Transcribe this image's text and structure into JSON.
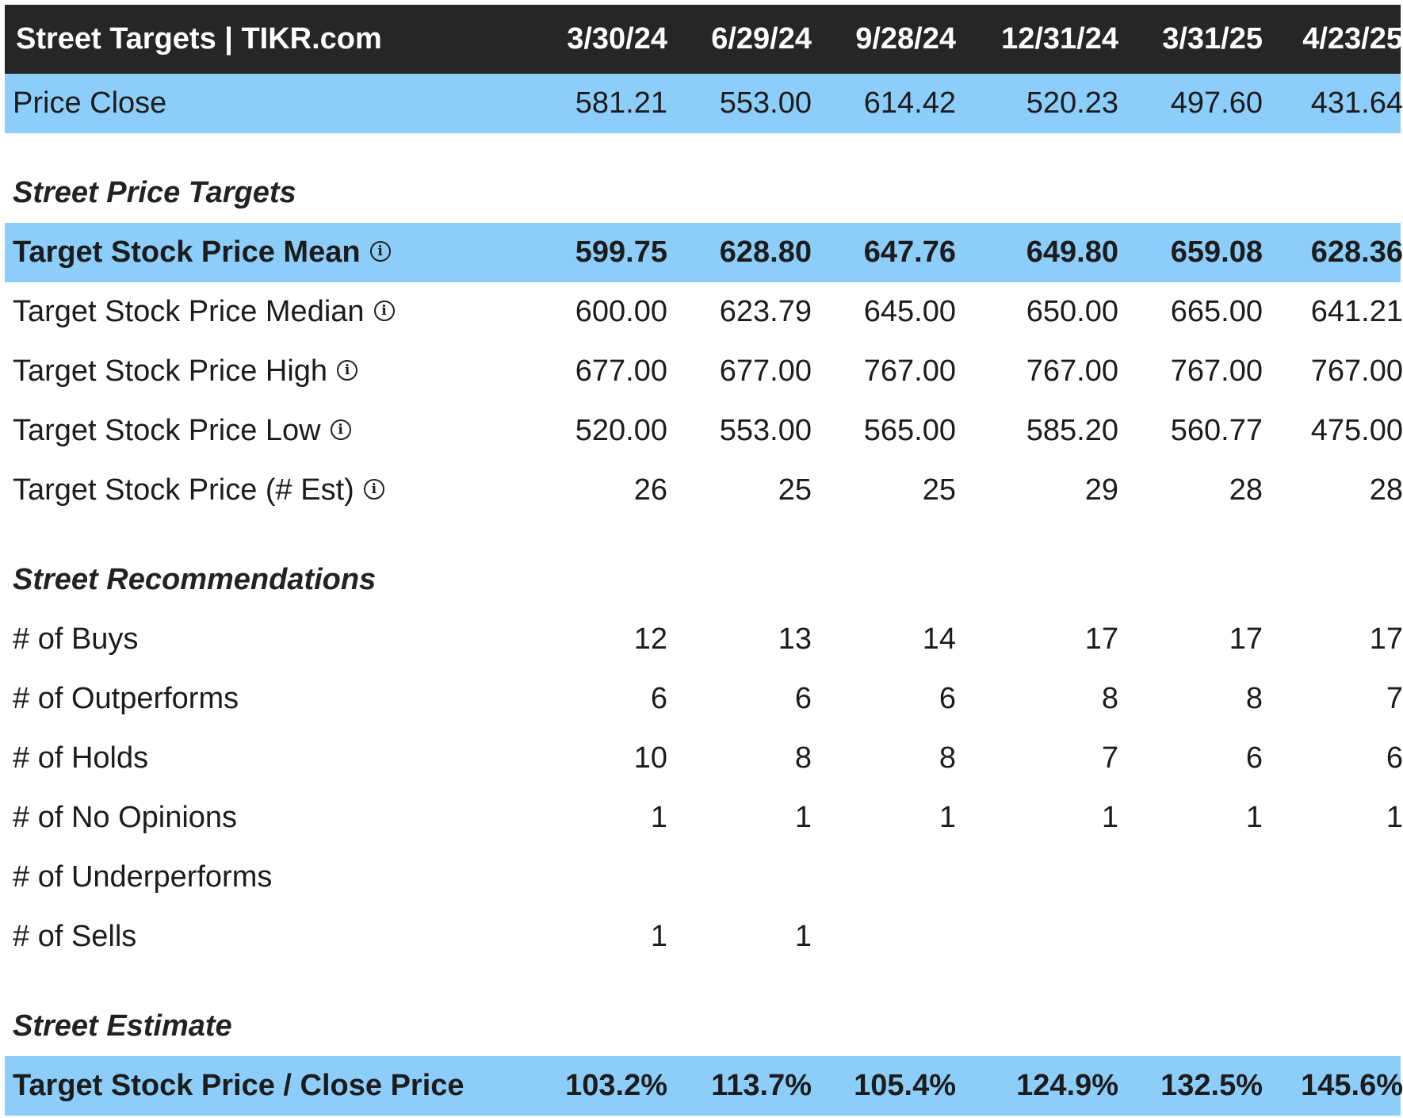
{
  "header": {
    "title": "Street Targets | TIKR.com",
    "dates": [
      "3/30/24",
      "6/29/24",
      "9/28/24",
      "12/31/24",
      "3/31/25",
      "4/23/25"
    ]
  },
  "price_close": {
    "label": "Price Close",
    "values": [
      "581.21",
      "553.00",
      "614.42",
      "520.23",
      "497.60",
      "431.64"
    ]
  },
  "street_price_targets": {
    "title": "Street Price Targets",
    "rows": [
      {
        "label": "Target Stock Price Mean",
        "values": [
          "599.75",
          "628.80",
          "647.76",
          "649.80",
          "659.08",
          "628.36"
        ]
      },
      {
        "label": "Target Stock Price Median",
        "values": [
          "600.00",
          "623.79",
          "645.00",
          "650.00",
          "665.00",
          "641.21"
        ]
      },
      {
        "label": "Target Stock Price High",
        "values": [
          "677.00",
          "677.00",
          "767.00",
          "767.00",
          "767.00",
          "767.00"
        ]
      },
      {
        "label": "Target Stock Price Low",
        "values": [
          "520.00",
          "553.00",
          "565.00",
          "585.20",
          "560.77",
          "475.00"
        ]
      },
      {
        "label": "Target Stock Price (# Est)",
        "values": [
          "26",
          "25",
          "25",
          "29",
          "28",
          "28"
        ]
      }
    ]
  },
  "street_recommendations": {
    "title": "Street Recommendations",
    "rows": [
      {
        "label": "# of Buys",
        "values": [
          "12",
          "13",
          "14",
          "17",
          "17",
          "17"
        ]
      },
      {
        "label": "# of Outperforms",
        "values": [
          "6",
          "6",
          "6",
          "8",
          "8",
          "7"
        ]
      },
      {
        "label": "# of Holds",
        "values": [
          "10",
          "8",
          "8",
          "7",
          "6",
          "6"
        ]
      },
      {
        "label": "# of No Opinions",
        "values": [
          "1",
          "1",
          "1",
          "1",
          "1",
          "1"
        ]
      },
      {
        "label": "# of Underperforms",
        "values": [
          "",
          "",
          "",
          "",
          "",
          ""
        ]
      },
      {
        "label": "# of Sells",
        "values": [
          "1",
          "1",
          "",
          "",
          "",
          ""
        ]
      }
    ]
  },
  "street_estimate": {
    "title": "Street Estimate",
    "rows": [
      {
        "label": "Target Stock Price / Close Price",
        "values": [
          "103.2%",
          "113.7%",
          "105.4%",
          "124.9%",
          "132.5%",
          "145.6%"
        ]
      }
    ]
  },
  "colors": {
    "header_bg": "#262626",
    "highlight": "#8ccdfa",
    "text": "#1c1c1c"
  },
  "icons": {
    "info": "info-circle-icon",
    "info_glyph": "i"
  }
}
